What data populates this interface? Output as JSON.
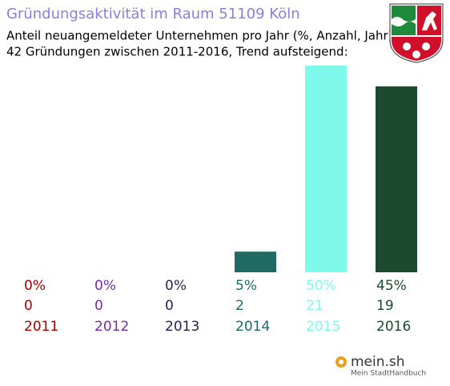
{
  "chart_data": {
    "type": "bar",
    "title": "Gründungsaktivität im Raum 51109 Köln",
    "subtitle": [
      "Anteil neuangemeldeter Unternehmen pro Jahr (%, Anzahl, Jahr)",
      "42 Gründungen zwischen 2011-2016, Trend aufsteigend:"
    ],
    "categories": [
      "2011",
      "2012",
      "2013",
      "2014",
      "2015",
      "2016"
    ],
    "values": [
      0,
      0,
      0,
      5,
      50,
      45
    ],
    "value_labels": [
      "0%",
      "0%",
      "0%",
      "5%",
      "50%",
      "45%"
    ],
    "counts": [
      0,
      0,
      0,
      2,
      21,
      19
    ],
    "colors": [
      "#a00000",
      "#7030a0",
      "#2b1d4f",
      "#1f6b63",
      "#7ff9ec",
      "#1d4a2e"
    ]
  },
  "footer": {
    "logo": "mein.sh",
    "tagline": "Mein StadtHandbuch"
  }
}
